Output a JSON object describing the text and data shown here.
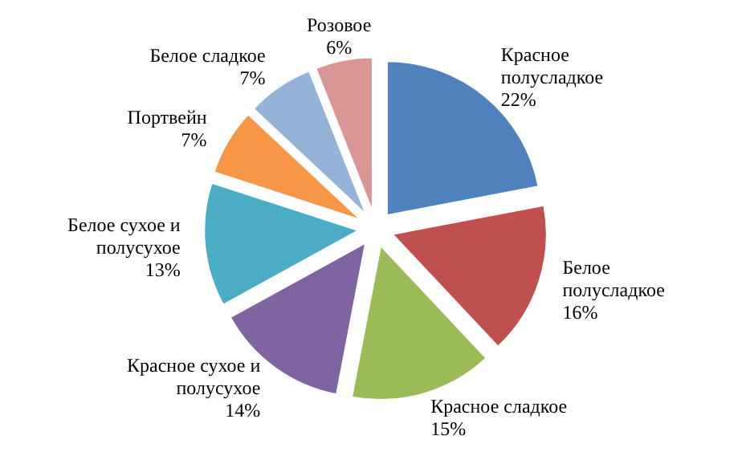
{
  "chart_data": {
    "type": "pie",
    "categories": [
      "Красное полусладкое",
      "Белое полусладкое",
      "Красное сладкое",
      "Красное сухое и полусухое",
      "Белое сухое и полусухое",
      "Портвейн",
      "Белое сладкое",
      "Розовое"
    ],
    "values": [
      22,
      16,
      15,
      14,
      13,
      7,
      7,
      6
    ],
    "value_labels": [
      "22%",
      "16%",
      "15%",
      "14%",
      "13%",
      "7%",
      "7%",
      "6%"
    ],
    "colors": [
      "#4f81bd",
      "#c0504d",
      "#9bbb59",
      "#8064a2",
      "#4bacc6",
      "#f79646",
      "#95b3d7",
      "#d99694"
    ]
  }
}
